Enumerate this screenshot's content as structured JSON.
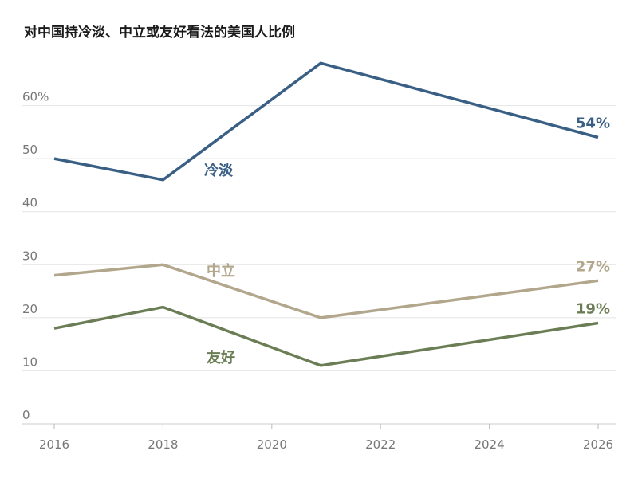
{
  "chart_data": {
    "type": "line",
    "title": "对中国持冷淡、中立或友好看法的美国人比例",
    "xlabel": "",
    "ylabel": "",
    "xlim": [
      2016,
      2026
    ],
    "ylim": [
      0,
      70
    ],
    "x_ticks": [
      "2016",
      "2018",
      "2020",
      "2022",
      "2024",
      "2026"
    ],
    "y_ticks": [
      "0",
      "10",
      "20",
      "30",
      "40",
      "50",
      "60%"
    ],
    "grid": true,
    "series": [
      {
        "name": "冷淡",
        "color": "#3a5f85",
        "end_label": "54%",
        "points": [
          [
            2016,
            50
          ],
          [
            2018,
            46
          ],
          [
            2020.9,
            68
          ],
          [
            2026,
            54
          ]
        ]
      },
      {
        "name": "中立",
        "color": "#b2a78c",
        "end_label": "27%",
        "points": [
          [
            2016,
            28
          ],
          [
            2018,
            30
          ],
          [
            2020.9,
            20
          ],
          [
            2026,
            27
          ]
        ]
      },
      {
        "name": "友好",
        "color": "#6b7d54",
        "end_label": "19%",
        "points": [
          [
            2016,
            18
          ],
          [
            2018,
            22
          ],
          [
            2020.9,
            11
          ],
          [
            2026,
            19
          ]
        ]
      }
    ]
  }
}
